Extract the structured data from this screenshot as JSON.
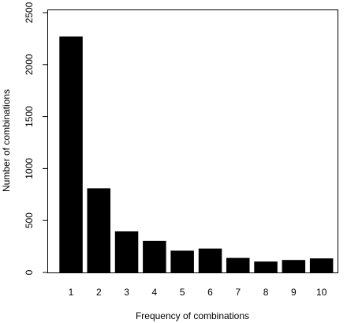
{
  "colors": {
    "bar_fill": "#000000",
    "axis": "#000000",
    "background": "#ffffff"
  },
  "chart_data": {
    "type": "bar",
    "categories": [
      "1",
      "2",
      "3",
      "4",
      "5",
      "6",
      "7",
      "8",
      "9",
      "10"
    ],
    "values": [
      2270,
      810,
      395,
      305,
      210,
      230,
      140,
      105,
      120,
      135
    ],
    "title": "",
    "xlabel": "Frequency of combinations",
    "ylabel": "Number of combinations",
    "ylim": [
      0,
      2500
    ],
    "yticks": [
      0,
      500,
      1000,
      1500,
      2000,
      2500
    ],
    "grid": false,
    "legend": "none"
  }
}
